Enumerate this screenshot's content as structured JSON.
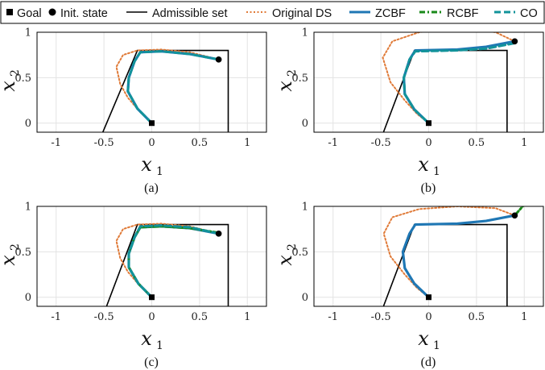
{
  "legend": {
    "items": [
      {
        "label": "Goal",
        "kind": "goal"
      },
      {
        "label": "Init. state",
        "kind": "init"
      },
      {
        "label": "Admissible set",
        "kind": "line",
        "color": "#000000",
        "dash": "solid"
      },
      {
        "label": "Original DS",
        "kind": "line",
        "color": "#E07B39",
        "dash": "dotted"
      },
      {
        "label": "ZCBF",
        "kind": "line",
        "color": "#1F77B4",
        "dash": "solid"
      },
      {
        "label": "RCBF",
        "kind": "line",
        "color": "#1A8A1A",
        "dash": "dashdot"
      },
      {
        "label": "CO",
        "kind": "line",
        "color": "#12939A",
        "dash": "dashed"
      }
    ]
  },
  "chart_data": [
    {
      "type": "line",
      "caption": "(a)",
      "xlabel": "x",
      "xlabel_sub": "1",
      "ylabel": "x",
      "ylabel_sub": "2",
      "xlim": [
        -1.2,
        1.2
      ],
      "ylim": [
        -0.1,
        1.0
      ],
      "xticks": [
        -1,
        -0.5,
        0,
        0.5,
        1
      ],
      "xtick_labels": [
        "-1",
        "-0.5",
        "0",
        "0.5",
        "1"
      ],
      "yticks": [
        0,
        0.5,
        1
      ],
      "ytick_labels": [
        "0",
        "0.5",
        "1"
      ],
      "grid": true,
      "goal": [
        0,
        0
      ],
      "init": [
        0.7,
        0.7
      ],
      "admissible_set": [
        [
          -0.52,
          -0.12
        ],
        [
          -0.15,
          0.8
        ],
        [
          0.8,
          0.8
        ],
        [
          0.8,
          -0.12
        ]
      ],
      "series": [
        {
          "name": "Original DS",
          "points": [
            [
              0.7,
              0.7
            ],
            [
              0.4,
              0.78
            ],
            [
              0.1,
              0.81
            ],
            [
              -0.15,
              0.8
            ],
            [
              -0.3,
              0.75
            ],
            [
              -0.37,
              0.62
            ],
            [
              -0.33,
              0.43
            ],
            [
              -0.25,
              0.28
            ],
            [
              -0.12,
              0.12
            ],
            [
              0,
              0
            ]
          ]
        },
        {
          "name": "ZCBF",
          "points": [
            [
              0.7,
              0.7
            ],
            [
              0.4,
              0.76
            ],
            [
              0.1,
              0.79
            ],
            [
              -0.12,
              0.78
            ],
            [
              -0.18,
              0.68
            ],
            [
              -0.24,
              0.5
            ],
            [
              -0.25,
              0.35
            ],
            [
              -0.15,
              0.16
            ],
            [
              0,
              0
            ]
          ]
        },
        {
          "name": "CO",
          "points": [
            [
              0.7,
              0.7
            ],
            [
              0.4,
              0.76
            ],
            [
              0.1,
              0.79
            ],
            [
              -0.12,
              0.78
            ],
            [
              -0.18,
              0.68
            ],
            [
              -0.24,
              0.5
            ],
            [
              -0.25,
              0.35
            ],
            [
              -0.15,
              0.16
            ],
            [
              0,
              0
            ]
          ]
        }
      ]
    },
    {
      "type": "line",
      "caption": "(b)",
      "xlabel": "x",
      "xlabel_sub": "1",
      "ylabel": "x",
      "ylabel_sub": "2",
      "xlim": [
        -1.2,
        1.2
      ],
      "ylim": [
        -0.1,
        1.0
      ],
      "xticks": [
        -1,
        -0.5,
        0,
        0.5,
        1
      ],
      "xtick_labels": [
        "-1",
        "-0.5",
        "0",
        "0.5",
        "1"
      ],
      "yticks": [
        0,
        0.5,
        1
      ],
      "ytick_labels": [
        "0",
        "0.5",
        "1"
      ],
      "grid": true,
      "goal": [
        0,
        0
      ],
      "init": [
        0.9,
        0.9
      ],
      "admissible_set": [
        [
          -0.48,
          -0.12
        ],
        [
          -0.15,
          0.8
        ],
        [
          0.82,
          0.8
        ],
        [
          0.82,
          -0.12
        ]
      ],
      "series": [
        {
          "name": "Original DS",
          "points": [
            [
              0.9,
              0.9
            ],
            [
              0.7,
              1.0
            ],
            [
              0.3,
              1.05
            ],
            [
              -0.1,
              1.0
            ],
            [
              -0.38,
              0.9
            ],
            [
              -0.48,
              0.72
            ],
            [
              -0.4,
              0.45
            ],
            [
              -0.25,
              0.25
            ],
            [
              -0.12,
              0.1
            ],
            [
              0,
              0
            ]
          ]
        },
        {
          "name": "ZCBF",
          "points": [
            [
              0.9,
              0.9
            ],
            [
              0.6,
              0.84
            ],
            [
              0.3,
              0.81
            ],
            [
              -0.14,
              0.8
            ],
            [
              -0.2,
              0.7
            ],
            [
              -0.26,
              0.5
            ],
            [
              -0.25,
              0.32
            ],
            [
              -0.15,
              0.15
            ],
            [
              0,
              0
            ]
          ]
        },
        {
          "name": "CO",
          "points": [
            [
              0.9,
              0.88
            ],
            [
              0.6,
              0.82
            ],
            [
              0.3,
              0.8
            ],
            [
              -0.14,
              0.79
            ],
            [
              -0.2,
              0.7
            ],
            [
              -0.26,
              0.5
            ],
            [
              -0.25,
              0.32
            ],
            [
              -0.15,
              0.15
            ],
            [
              0,
              0
            ]
          ]
        }
      ]
    },
    {
      "type": "line",
      "caption": "(c)",
      "xlabel": "x",
      "xlabel_sub": "1",
      "ylabel": "x",
      "ylabel_sub": "2",
      "xlim": [
        -1.2,
        1.2
      ],
      "ylim": [
        -0.1,
        1.0
      ],
      "xticks": [
        -1,
        -0.5,
        0,
        0.5,
        1
      ],
      "xtick_labels": [
        "-1",
        "-0.5",
        "0",
        "0.5",
        "1"
      ],
      "yticks": [
        0,
        0.5,
        1
      ],
      "ytick_labels": [
        "0",
        "0.5",
        "1"
      ],
      "grid": true,
      "goal": [
        0,
        0
      ],
      "init": [
        0.7,
        0.7
      ],
      "admissible_set": [
        [
          -0.48,
          -0.12
        ],
        [
          -0.15,
          0.8
        ],
        [
          0.8,
          0.8
        ],
        [
          0.8,
          -0.12
        ]
      ],
      "series": [
        {
          "name": "Original DS",
          "points": [
            [
              0.7,
              0.7
            ],
            [
              0.4,
              0.78
            ],
            [
              0.1,
              0.81
            ],
            [
              -0.15,
              0.8
            ],
            [
              -0.3,
              0.75
            ],
            [
              -0.37,
              0.62
            ],
            [
              -0.33,
              0.43
            ],
            [
              -0.25,
              0.28
            ],
            [
              -0.12,
              0.12
            ],
            [
              0,
              0
            ]
          ]
        },
        {
          "name": "ZCBF",
          "points": [
            [
              0.7,
              0.7
            ],
            [
              0.4,
              0.76
            ],
            [
              0.1,
              0.78
            ],
            [
              -0.12,
              0.77
            ],
            [
              -0.18,
              0.66
            ],
            [
              -0.24,
              0.48
            ],
            [
              -0.24,
              0.33
            ],
            [
              -0.14,
              0.15
            ],
            [
              0,
              0
            ]
          ]
        },
        {
          "name": "RCBF",
          "points": [
            [
              0.7,
              0.71
            ],
            [
              0.4,
              0.76
            ],
            [
              0.1,
              0.78
            ],
            [
              -0.12,
              0.77
            ],
            [
              -0.18,
              0.66
            ],
            [
              -0.24,
              0.48
            ],
            [
              -0.24,
              0.33
            ],
            [
              -0.14,
              0.15
            ],
            [
              0,
              0
            ]
          ]
        },
        {
          "name": "CO",
          "points": [
            [
              0.7,
              0.7
            ],
            [
              0.4,
              0.77
            ],
            [
              0.1,
              0.79
            ],
            [
              -0.12,
              0.78
            ],
            [
              -0.18,
              0.66
            ],
            [
              -0.24,
              0.48
            ],
            [
              -0.24,
              0.33
            ],
            [
              -0.14,
              0.15
            ],
            [
              0,
              0
            ]
          ]
        }
      ]
    },
    {
      "type": "line",
      "caption": "(d)",
      "xlabel": "x",
      "xlabel_sub": "1",
      "ylabel": "x",
      "ylabel_sub": "2",
      "xlim": [
        -1.2,
        1.2
      ],
      "ylim": [
        -0.1,
        1.0
      ],
      "xticks": [
        -1,
        -0.5,
        0,
        0.5,
        1
      ],
      "xtick_labels": [
        "-1",
        "-0.5",
        "0",
        "0.5",
        "1"
      ],
      "yticks": [
        0,
        0.5,
        1
      ],
      "ytick_labels": [
        "0",
        "0.5",
        "1"
      ],
      "grid": true,
      "goal": [
        0,
        0
      ],
      "init": [
        0.9,
        0.9
      ],
      "admissible_set": [
        [
          -0.48,
          -0.12
        ],
        [
          -0.15,
          0.8
        ],
        [
          0.82,
          0.8
        ],
        [
          0.82,
          -0.12
        ]
      ],
      "series": [
        {
          "name": "Original DS",
          "points": [
            [
              0.9,
              0.9
            ],
            [
              0.7,
              0.98
            ],
            [
              0.3,
              1.0
            ],
            [
              -0.1,
              0.97
            ],
            [
              -0.38,
              0.88
            ],
            [
              -0.47,
              0.7
            ],
            [
              -0.4,
              0.45
            ],
            [
              -0.25,
              0.25
            ],
            [
              -0.12,
              0.1
            ],
            [
              0,
              0
            ]
          ]
        },
        {
          "name": "ZCBF",
          "points": [
            [
              0.9,
              0.9
            ],
            [
              0.6,
              0.84
            ],
            [
              0.3,
              0.81
            ],
            [
              -0.14,
              0.8
            ],
            [
              -0.2,
              0.7
            ],
            [
              -0.27,
              0.5
            ],
            [
              -0.25,
              0.32
            ],
            [
              -0.15,
              0.15
            ],
            [
              0,
              0
            ]
          ]
        },
        {
          "name": "RCBF",
          "points": [
            [
              0.9,
              0.9
            ],
            [
              1.0,
              1.02
            ],
            [
              1.1,
              1.16
            ],
            [
              1.15,
              1.24
            ]
          ]
        }
      ]
    }
  ]
}
